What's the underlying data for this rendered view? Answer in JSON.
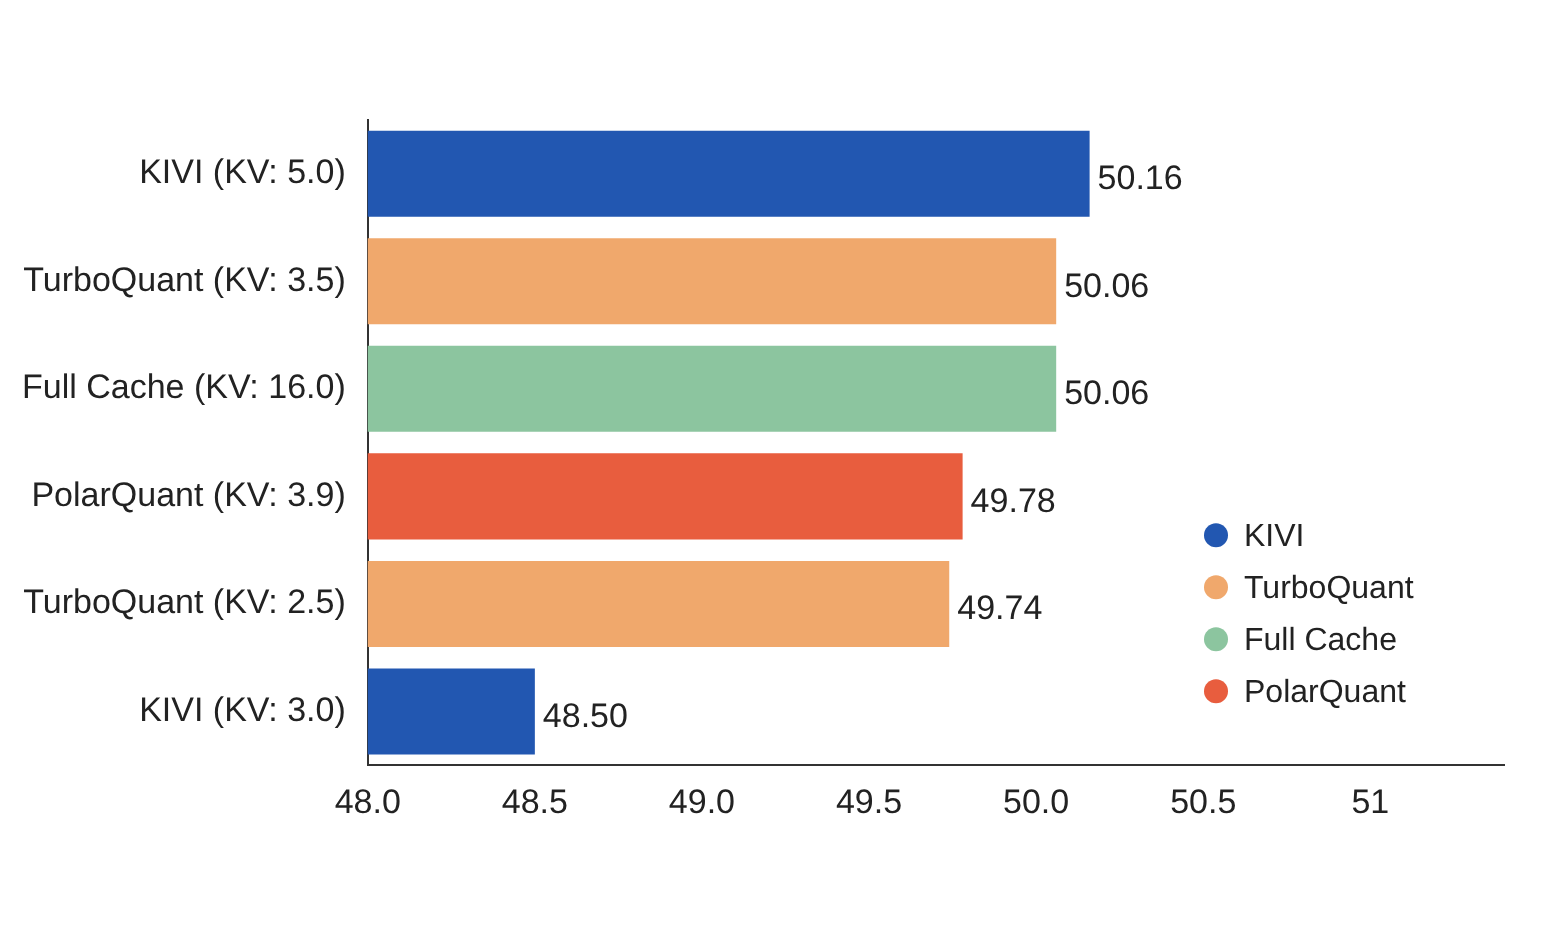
{
  "chart_data": {
    "type": "bar",
    "orientation": "horizontal",
    "categories": [
      "KIVI (KV: 5.0)",
      "TurboQuant (KV: 3.5)",
      "Full Cache (KV: 16.0)",
      "PolarQuant (KV: 3.9)",
      "TurboQuant (KV: 2.5)",
      "KIVI (KV: 3.0)"
    ],
    "series": [
      {
        "name": "KIVI",
        "color": "#2257b1",
        "values": [
          50.16,
          null,
          null,
          null,
          null,
          48.5
        ]
      },
      {
        "name": "TurboQuant",
        "color": "#f0a86c",
        "values": [
          null,
          50.06,
          null,
          null,
          49.74,
          null
        ]
      },
      {
        "name": "Full Cache",
        "color": "#8cc59f",
        "values": [
          null,
          null,
          50.06,
          null,
          null,
          null
        ]
      },
      {
        "name": "PolarQuant",
        "color": "#e85d3e",
        "values": [
          null,
          null,
          null,
          49.78,
          null,
          null
        ]
      }
    ],
    "value_labels": [
      "50.16",
      "50.06",
      "50.06",
      "49.78",
      "49.74",
      "48.50"
    ],
    "xlim": [
      48,
      51.4
    ],
    "xticks": [
      {
        "value": 48,
        "label": "48.0"
      },
      {
        "value": 48.5,
        "label": "48.5"
      },
      {
        "value": 49,
        "label": "49.0"
      },
      {
        "value": 49.5,
        "label": "49.5"
      },
      {
        "value": 50,
        "label": "50.0"
      },
      {
        "value": 50.5,
        "label": "50.5"
      },
      51
    ],
    "grid": false,
    "legend": "bottom right",
    "marker": "circle"
  }
}
